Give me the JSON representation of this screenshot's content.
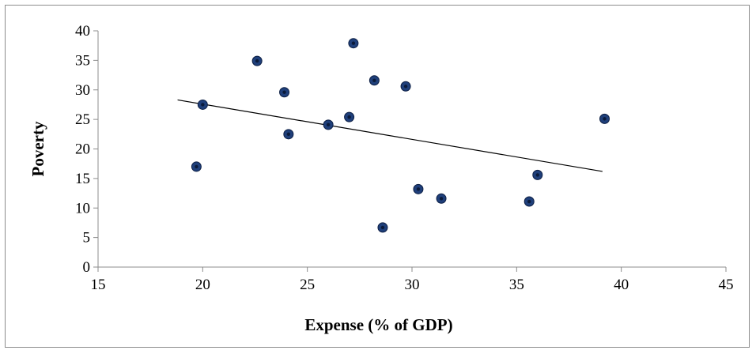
{
  "chart_data": {
    "type": "scatter",
    "title": "",
    "xlabel": "Expense (% of GDP)",
    "ylabel": "Poverty",
    "xlim": [
      15,
      45
    ],
    "ylim": [
      0,
      40
    ],
    "x_ticks": [
      15,
      20,
      25,
      30,
      35,
      40,
      45
    ],
    "y_ticks": [
      0,
      5,
      10,
      15,
      20,
      25,
      30,
      35,
      40
    ],
    "grid": false,
    "legend": "none",
    "marker_color": "#1f3f7a",
    "points": [
      {
        "x": 19.7,
        "y": 17.0
      },
      {
        "x": 20.0,
        "y": 27.5
      },
      {
        "x": 22.6,
        "y": 34.9
      },
      {
        "x": 23.9,
        "y": 29.6
      },
      {
        "x": 24.1,
        "y": 22.5
      },
      {
        "x": 26.0,
        "y": 24.1
      },
      {
        "x": 27.0,
        "y": 25.4
      },
      {
        "x": 27.2,
        "y": 37.9
      },
      {
        "x": 28.2,
        "y": 31.6
      },
      {
        "x": 28.6,
        "y": 6.7
      },
      {
        "x": 29.7,
        "y": 30.6
      },
      {
        "x": 30.3,
        "y": 13.2
      },
      {
        "x": 31.4,
        "y": 11.6
      },
      {
        "x": 35.6,
        "y": 11.1
      },
      {
        "x": 36.0,
        "y": 15.6
      },
      {
        "x": 39.2,
        "y": 25.1
      }
    ],
    "trendline": {
      "x": [
        18.8,
        39.1
      ],
      "y": [
        28.3,
        16.2
      ]
    }
  }
}
